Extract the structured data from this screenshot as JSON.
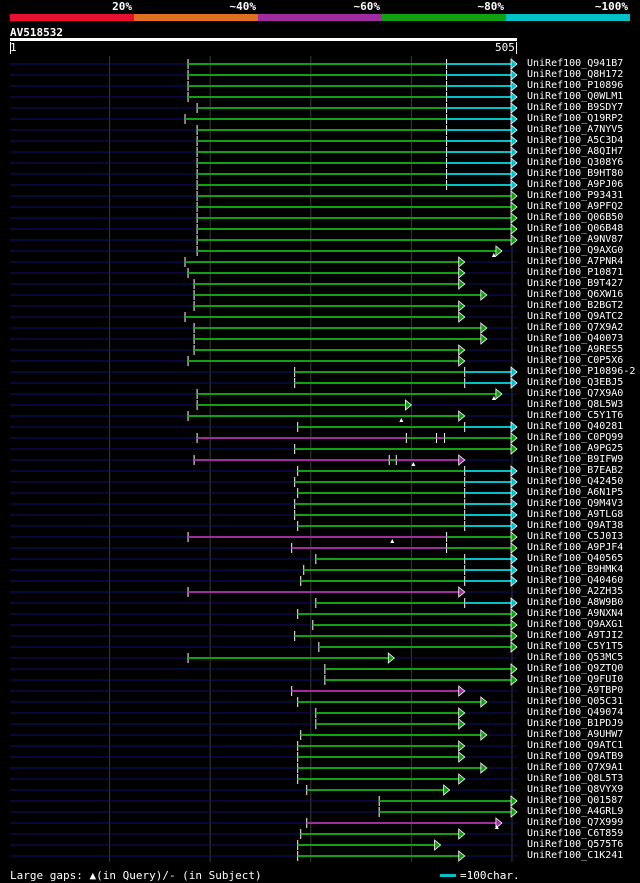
{
  "legend": {
    "segments": [
      {
        "label": "20%",
        "color": "#e8102c"
      },
      {
        "label": "~40%",
        "color": "#e07020"
      },
      {
        "label": "~60%",
        "color": "#a02ca0"
      },
      {
        "label": "~80%",
        "color": "#10a010"
      },
      {
        "label": "~100%",
        "color": "#00c0c8"
      }
    ]
  },
  "query": {
    "name": "AV518532",
    "start": "1",
    "end": "505",
    "length": 505
  },
  "colors": {
    "cyan": "#00c0c8",
    "green": "#10a010",
    "magenta": "#a02ca0",
    "guide": "#10106a",
    "grid": "#3a3a3a"
  },
  "hits": [
    {
      "label": "UniRef100_Q941B7",
      "start": 178,
      "end": 505,
      "segs": [
        [
          178,
          435,
          "g"
        ],
        [
          435,
          505,
          "c"
        ]
      ]
    },
    {
      "label": "UniRef100_Q8H172",
      "start": 178,
      "end": 505,
      "segs": [
        [
          178,
          435,
          "g"
        ],
        [
          435,
          505,
          "c"
        ]
      ]
    },
    {
      "label": "UniRef100_P10896",
      "start": 178,
      "end": 505,
      "segs": [
        [
          178,
          435,
          "g"
        ],
        [
          435,
          505,
          "c"
        ]
      ]
    },
    {
      "label": "UniRef100_Q0WLM1",
      "start": 178,
      "end": 505,
      "segs": [
        [
          178,
          435,
          "g"
        ],
        [
          435,
          505,
          "c"
        ]
      ]
    },
    {
      "label": "UniRef100_B9SDY7",
      "start": 187,
      "end": 505,
      "segs": [
        [
          187,
          435,
          "g"
        ],
        [
          435,
          505,
          "c"
        ]
      ]
    },
    {
      "label": "UniRef100_Q19RP2",
      "start": 175,
      "end": 505,
      "segs": [
        [
          175,
          435,
          "g"
        ],
        [
          435,
          505,
          "c"
        ]
      ]
    },
    {
      "label": "UniRef100_A7NYV5",
      "start": 187,
      "end": 505,
      "segs": [
        [
          187,
          435,
          "g"
        ],
        [
          435,
          505,
          "c"
        ]
      ]
    },
    {
      "label": "UniRef100_A5C3D4",
      "start": 187,
      "end": 505,
      "segs": [
        [
          187,
          435,
          "g"
        ],
        [
          435,
          505,
          "c"
        ]
      ]
    },
    {
      "label": "UniRef100_A8QIH7",
      "start": 187,
      "end": 505,
      "segs": [
        [
          187,
          435,
          "g"
        ],
        [
          435,
          505,
          "c"
        ]
      ]
    },
    {
      "label": "UniRef100_Q308Y6",
      "start": 187,
      "end": 505,
      "segs": [
        [
          187,
          435,
          "g"
        ],
        [
          435,
          505,
          "c"
        ]
      ]
    },
    {
      "label": "UniRef100_B9HT80",
      "start": 187,
      "end": 505,
      "segs": [
        [
          187,
          435,
          "g"
        ],
        [
          435,
          505,
          "c"
        ]
      ]
    },
    {
      "label": "UniRef100_A9PJ06",
      "start": 187,
      "end": 505,
      "segs": [
        [
          187,
          435,
          "g"
        ],
        [
          435,
          505,
          "c"
        ]
      ]
    },
    {
      "label": "UniRef100_P93431",
      "start": 187,
      "end": 505,
      "segs": [
        [
          187,
          505,
          "g"
        ]
      ]
    },
    {
      "label": "UniRef100_A9PFQ2",
      "start": 187,
      "end": 505,
      "segs": [
        [
          187,
          505,
          "g"
        ]
      ]
    },
    {
      "label": "UniRef100_Q06B50",
      "start": 187,
      "end": 505,
      "segs": [
        [
          187,
          505,
          "g"
        ]
      ]
    },
    {
      "label": "UniRef100_Q06B48",
      "start": 187,
      "end": 505,
      "segs": [
        [
          187,
          505,
          "g"
        ]
      ]
    },
    {
      "label": "UniRef100_A9NV87",
      "start": 187,
      "end": 505,
      "segs": [
        [
          187,
          505,
          "g"
        ]
      ]
    },
    {
      "label": "UniRef100_Q9AXG0",
      "start": 187,
      "end": 490,
      "segs": [
        [
          187,
          490,
          "g"
        ]
      ],
      "gap": 482
    },
    {
      "label": "UniRef100_A7PNR4",
      "start": 175,
      "end": 453,
      "segs": [
        [
          175,
          453,
          "g"
        ]
      ]
    },
    {
      "label": "UniRef100_P10871",
      "start": 178,
      "end": 453,
      "segs": [
        [
          178,
          453,
          "g"
        ]
      ]
    },
    {
      "label": "UniRef100_B9T427",
      "start": 184,
      "end": 453,
      "segs": [
        [
          184,
          453,
          "g"
        ]
      ]
    },
    {
      "label": "UniRef100_Q6XW16",
      "start": 184,
      "end": 475,
      "segs": [
        [
          184,
          475,
          "g"
        ]
      ]
    },
    {
      "label": "UniRef100_B2BGT2",
      "start": 184,
      "end": 453,
      "segs": [
        [
          184,
          453,
          "g"
        ]
      ]
    },
    {
      "label": "UniRef100_Q9ATC2",
      "start": 175,
      "end": 453,
      "segs": [
        [
          175,
          453,
          "g"
        ]
      ]
    },
    {
      "label": "UniRef100_Q7X9A2",
      "start": 184,
      "end": 475,
      "segs": [
        [
          184,
          475,
          "g"
        ]
      ]
    },
    {
      "label": "UniRef100_Q40073",
      "start": 184,
      "end": 475,
      "segs": [
        [
          184,
          475,
          "g"
        ]
      ]
    },
    {
      "label": "UniRef100_A9RES5",
      "start": 184,
      "end": 453,
      "segs": [
        [
          184,
          453,
          "g"
        ]
      ]
    },
    {
      "label": "UniRef100_C0P5X6",
      "start": 178,
      "end": 453,
      "segs": [
        [
          178,
          453,
          "g"
        ]
      ]
    },
    {
      "label": "UniRef100_P10896-2",
      "start": 284,
      "end": 505,
      "segs": [
        [
          284,
          453,
          "g"
        ],
        [
          453,
          505,
          "c"
        ]
      ]
    },
    {
      "label": "UniRef100_Q3EBJ5",
      "start": 284,
      "end": 505,
      "segs": [
        [
          284,
          453,
          "g"
        ],
        [
          453,
          505,
          "c"
        ]
      ]
    },
    {
      "label": "UniRef100_Q7X9A0",
      "start": 187,
      "end": 490,
      "segs": [
        [
          187,
          490,
          "g"
        ]
      ],
      "gap": 482
    },
    {
      "label": "UniRef100_Q8L5W3",
      "start": 187,
      "end": 400,
      "segs": [
        [
          187,
          400,
          "g"
        ]
      ]
    },
    {
      "label": "UniRef100_C5Y1T6",
      "start": 178,
      "end": 453,
      "segs": [
        [
          178,
          453,
          "g"
        ]
      ],
      "gap": 390
    },
    {
      "label": "UniRef100_Q40281",
      "start": 287,
      "end": 505,
      "segs": [
        [
          287,
          453,
          "g"
        ],
        [
          453,
          505,
          "c"
        ]
      ]
    },
    {
      "label": "UniRef100_C0PQ99",
      "start": 187,
      "end": 505,
      "segs": [
        [
          187,
          395,
          "m"
        ],
        [
          395,
          425,
          "g"
        ],
        [
          425,
          433,
          "m"
        ],
        [
          433,
          505,
          "g"
        ]
      ]
    },
    {
      "label": "UniRef100_A9PG25",
      "start": 284,
      "end": 505,
      "segs": [
        [
          284,
          505,
          "g"
        ]
      ]
    },
    {
      "label": "UniRef100_B9IFW9",
      "start": 184,
      "end": 453,
      "segs": [
        [
          184,
          378,
          "m"
        ],
        [
          378,
          385,
          "g"
        ],
        [
          385,
          453,
          "m"
        ]
      ],
      "gap": 402
    },
    {
      "label": "UniRef100_B7EAB2",
      "start": 287,
      "end": 505,
      "segs": [
        [
          287,
          453,
          "g"
        ],
        [
          453,
          505,
          "c"
        ]
      ]
    },
    {
      "label": "UniRef100_Q42450",
      "start": 284,
      "end": 505,
      "segs": [
        [
          284,
          453,
          "g"
        ],
        [
          453,
          505,
          "c"
        ]
      ]
    },
    {
      "label": "UniRef100_A6N1P5",
      "start": 287,
      "end": 505,
      "segs": [
        [
          287,
          453,
          "g"
        ],
        [
          453,
          505,
          "c"
        ]
      ]
    },
    {
      "label": "UniRef100_Q9M4V3",
      "start": 284,
      "end": 505,
      "segs": [
        [
          284,
          453,
          "g"
        ],
        [
          453,
          505,
          "c"
        ]
      ]
    },
    {
      "label": "UniRef100_A9TLG8",
      "start": 284,
      "end": 505,
      "segs": [
        [
          284,
          453,
          "g"
        ],
        [
          453,
          505,
          "c"
        ]
      ]
    },
    {
      "label": "UniRef100_Q9AT38",
      "start": 287,
      "end": 505,
      "segs": [
        [
          287,
          453,
          "g"
        ],
        [
          453,
          505,
          "c"
        ]
      ]
    },
    {
      "label": "UniRef100_C5J0I3",
      "start": 178,
      "end": 505,
      "segs": [
        [
          178,
          435,
          "m"
        ],
        [
          435,
          505,
          "g"
        ]
      ],
      "gap": 381
    },
    {
      "label": "UniRef100_A9PJF4",
      "start": 281,
      "end": 505,
      "segs": [
        [
          281,
          435,
          "m"
        ],
        [
          435,
          505,
          "g"
        ]
      ]
    },
    {
      "label": "UniRef100_Q40565",
      "start": 305,
      "end": 505,
      "segs": [
        [
          305,
          453,
          "g"
        ],
        [
          453,
          505,
          "c"
        ]
      ]
    },
    {
      "label": "UniRef100_B9HMK4",
      "start": 293,
      "end": 505,
      "segs": [
        [
          293,
          453,
          "g"
        ],
        [
          453,
          505,
          "c"
        ]
      ]
    },
    {
      "label": "UniRef100_Q40460",
      "start": 290,
      "end": 505,
      "segs": [
        [
          290,
          453,
          "g"
        ],
        [
          453,
          505,
          "c"
        ]
      ]
    },
    {
      "label": "UniRef100_A2ZH35",
      "start": 178,
      "end": 453,
      "segs": [
        [
          178,
          453,
          "m"
        ]
      ]
    },
    {
      "label": "UniRef100_A8W9B0",
      "start": 305,
      "end": 505,
      "segs": [
        [
          305,
          453,
          "g"
        ],
        [
          453,
          505,
          "c"
        ]
      ]
    },
    {
      "label": "UniRef100_A9NXN4",
      "start": 287,
      "end": 505,
      "segs": [
        [
          287,
          505,
          "g"
        ]
      ]
    },
    {
      "label": "UniRef100_Q9AXG1",
      "start": 302,
      "end": 505,
      "segs": [
        [
          302,
          505,
          "g"
        ]
      ]
    },
    {
      "label": "UniRef100_A9TJI2",
      "start": 284,
      "end": 505,
      "segs": [
        [
          284,
          505,
          "g"
        ]
      ]
    },
    {
      "label": "UniRef100_C5Y1T5",
      "start": 308,
      "end": 505,
      "segs": [
        [
          308,
          505,
          "g"
        ]
      ]
    },
    {
      "label": "UniRef100_Q53MC5",
      "start": 178,
      "end": 383,
      "segs": [
        [
          178,
          383,
          "g"
        ]
      ]
    },
    {
      "label": "UniRef100_Q9ZTQ0",
      "start": 314,
      "end": 505,
      "segs": [
        [
          314,
          505,
          "g"
        ]
      ]
    },
    {
      "label": "UniRef100_Q9FUI0",
      "start": 314,
      "end": 505,
      "segs": [
        [
          314,
          505,
          "g"
        ]
      ]
    },
    {
      "label": "UniRef100_A9TBP0",
      "start": 281,
      "end": 453,
      "segs": [
        [
          281,
          453,
          "m"
        ]
      ]
    },
    {
      "label": "UniRef100_Q05C31",
      "start": 287,
      "end": 475,
      "segs": [
        [
          287,
          475,
          "g"
        ]
      ]
    },
    {
      "label": "UniRef100_Q49074",
      "start": 305,
      "end": 453,
      "segs": [
        [
          305,
          453,
          "g"
        ]
      ]
    },
    {
      "label": "UniRef100_B1PDJ9",
      "start": 305,
      "end": 453,
      "segs": [
        [
          305,
          453,
          "g"
        ]
      ]
    },
    {
      "label": "UniRef100_A9UHW7",
      "start": 290,
      "end": 475,
      "segs": [
        [
          290,
          475,
          "g"
        ]
      ]
    },
    {
      "label": "UniRef100_Q9ATC1",
      "start": 287,
      "end": 453,
      "segs": [
        [
          287,
          453,
          "g"
        ]
      ]
    },
    {
      "label": "UniRef100_Q9ATB9",
      "start": 287,
      "end": 453,
      "segs": [
        [
          287,
          453,
          "g"
        ]
      ]
    },
    {
      "label": "UniRef100_Q7X9A1",
      "start": 287,
      "end": 475,
      "segs": [
        [
          287,
          475,
          "g"
        ]
      ]
    },
    {
      "label": "UniRef100_Q8L5T3",
      "start": 287,
      "end": 453,
      "segs": [
        [
          287,
          453,
          "g"
        ]
      ]
    },
    {
      "label": "UniRef100_Q8VYX9",
      "start": 296,
      "end": 438,
      "segs": [
        [
          296,
          438,
          "g"
        ]
      ]
    },
    {
      "label": "UniRef100_Q01587",
      "start": 368,
      "end": 505,
      "segs": [
        [
          368,
          505,
          "g"
        ]
      ]
    },
    {
      "label": "UniRef100_A4GRL9",
      "start": 368,
      "end": 505,
      "segs": [
        [
          368,
          505,
          "g"
        ]
      ]
    },
    {
      "label": "UniRef100_Q7X999",
      "start": 296,
      "end": 490,
      "segs": [
        [
          296,
          490,
          "m"
        ]
      ],
      "gap": 485
    },
    {
      "label": "UniRef100_C6T859",
      "start": 290,
      "end": 453,
      "segs": [
        [
          290,
          453,
          "g"
        ]
      ]
    },
    {
      "label": "UniRef100_Q575T6",
      "start": 287,
      "end": 429,
      "segs": [
        [
          287,
          429,
          "g"
        ]
      ]
    },
    {
      "label": "UniRef100_C1K241",
      "start": 287,
      "end": 453,
      "segs": [
        [
          287,
          453,
          "g"
        ]
      ]
    }
  ],
  "footer": {
    "gaps_text": "Large gaps: ▲(in Query)/- (in Subject)",
    "scale_text": "=100char."
  }
}
